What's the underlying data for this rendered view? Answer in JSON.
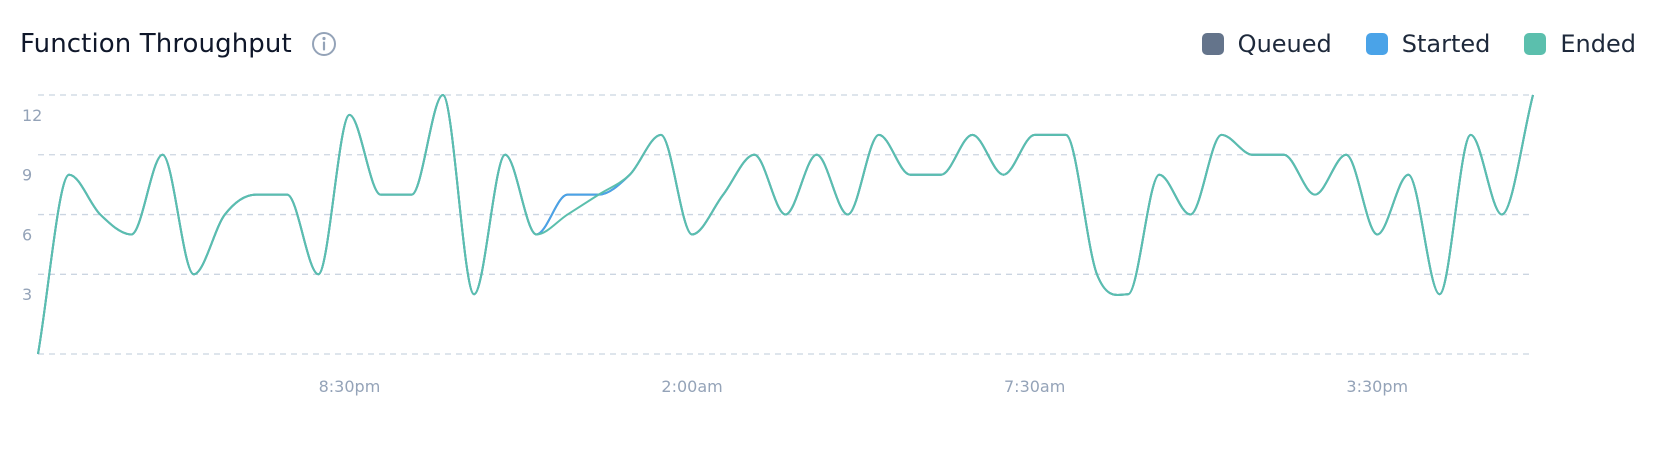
{
  "header": {
    "title": "Function Throughput"
  },
  "legend": {
    "items": [
      {
        "label": "Queued",
        "color": "#64748b"
      },
      {
        "label": "Started",
        "color": "#4aa3e8"
      },
      {
        "label": "Ended",
        "color": "#5bbfad"
      }
    ]
  },
  "chart_data": {
    "type": "line",
    "title": "Function Throughput",
    "xlabel": "",
    "ylabel": "",
    "ylim": [
      0,
      13
    ],
    "y_ticks": [
      3,
      6,
      9,
      12
    ],
    "x_ticks": [
      "8:30pm",
      "2:00am",
      "7:30am",
      "3:30pm"
    ],
    "x_tick_index": [
      10,
      21,
      32,
      43
    ],
    "grid": true,
    "legend_position": "top-right",
    "series": [
      {
        "name": "Queued",
        "color": "#64748b",
        "values": [
          0,
          9,
          7,
          6,
          10,
          4,
          7,
          8,
          8,
          4,
          12,
          8,
          8,
          13,
          3,
          10,
          6,
          8,
          8,
          9,
          11,
          6,
          8,
          10,
          7,
          10,
          7,
          11,
          9,
          9,
          11,
          9,
          11,
          11,
          4,
          3,
          9,
          7,
          11,
          10,
          10,
          8,
          10,
          6,
          9,
          3,
          11,
          7,
          13
        ]
      },
      {
        "name": "Started",
        "color": "#4aa3e8",
        "values": [
          0,
          9,
          7,
          6,
          10,
          4,
          7,
          8,
          8,
          4,
          12,
          8,
          8,
          13,
          3,
          10,
          6,
          8,
          8,
          9,
          11,
          6,
          8,
          10,
          7,
          10,
          7,
          11,
          9,
          9,
          11,
          9,
          11,
          11,
          4,
          3,
          9,
          7,
          11,
          10,
          10,
          8,
          10,
          6,
          9,
          3,
          11,
          7,
          13
        ]
      },
      {
        "name": "Ended",
        "color": "#5bbfad",
        "values": [
          0,
          9,
          7,
          6,
          10,
          4,
          7,
          8,
          8,
          4,
          12,
          8,
          8,
          13,
          3,
          10,
          6,
          7,
          8,
          9,
          11,
          6,
          8,
          10,
          7,
          10,
          7,
          11,
          9,
          9,
          11,
          9,
          11,
          11,
          4,
          3,
          9,
          7,
          11,
          10,
          10,
          8,
          10,
          6,
          9,
          3,
          11,
          7,
          13
        ]
      }
    ]
  }
}
